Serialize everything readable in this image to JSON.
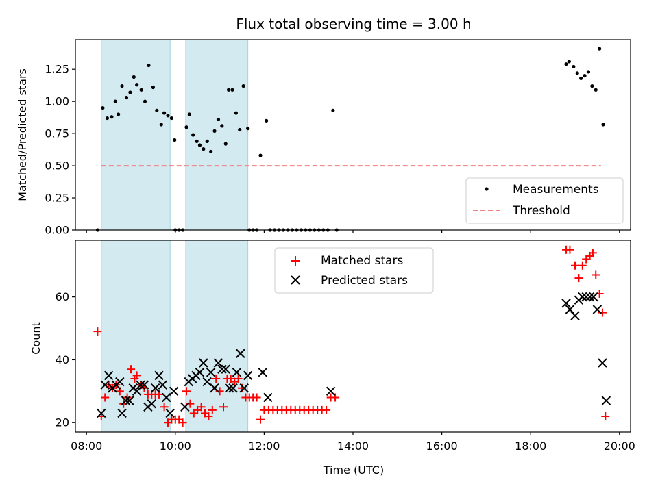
{
  "chart_data": [
    {
      "type": "scatter",
      "title": "Flux total observing time = 3.00 h",
      "ylabel": "Matched/Predicted stars",
      "xlabel": "",
      "xlim": [
        "07:45",
        "20:15"
      ],
      "ylim": [
        0.0,
        1.48
      ],
      "yticks": [
        "0.00",
        "0.25",
        "0.50",
        "0.75",
        "1.00",
        "1.25"
      ],
      "legend": "lower-right",
      "shaded_intervals": [
        [
          "08:20",
          "09:53"
        ],
        [
          "10:14",
          "11:38"
        ]
      ],
      "shade_color": "#d2eaf0",
      "series": [
        {
          "name": "Measurements",
          "marker": "dot",
          "color": "#000000",
          "points": [
            [
              "08:15",
              0.0
            ],
            [
              "08:22",
              0.95
            ],
            [
              "08:28",
              0.87
            ],
            [
              "08:34",
              0.88
            ],
            [
              "08:39",
              1.0
            ],
            [
              "08:43",
              0.9
            ],
            [
              "08:48",
              1.12
            ],
            [
              "08:54",
              1.03
            ],
            [
              "08:59",
              1.07
            ],
            [
              "09:04",
              1.19
            ],
            [
              "09:08",
              1.13
            ],
            [
              "09:14",
              1.09
            ],
            [
              "09:19",
              1.0
            ],
            [
              "09:24",
              1.28
            ],
            [
              "09:30",
              1.11
            ],
            [
              "09:35",
              0.93
            ],
            [
              "09:41",
              0.82
            ],
            [
              "09:45",
              0.91
            ],
            [
              "09:50",
              0.89
            ],
            [
              "09:55",
              0.87
            ],
            [
              "09:59",
              0.7
            ],
            [
              "10:00",
              0.0
            ],
            [
              "10:05",
              0.0
            ],
            [
              "10:10",
              0.0
            ],
            [
              "10:15",
              0.8
            ],
            [
              "10:19",
              0.9
            ],
            [
              "10:24",
              0.74
            ],
            [
              "10:29",
              0.69
            ],
            [
              "10:33",
              0.66
            ],
            [
              "10:38",
              0.63
            ],
            [
              "10:43",
              0.69
            ],
            [
              "10:48",
              0.61
            ],
            [
              "10:53",
              0.77
            ],
            [
              "10:58",
              0.86
            ],
            [
              "11:03",
              0.81
            ],
            [
              "11:08",
              0.67
            ],
            [
              "11:12",
              1.09
            ],
            [
              "11:17",
              1.09
            ],
            [
              "11:22",
              0.91
            ],
            [
              "11:27",
              0.78
            ],
            [
              "11:32",
              1.12
            ],
            [
              "11:38",
              0.79
            ],
            [
              "11:40",
              0.0
            ],
            [
              "11:45",
              0.0
            ],
            [
              "11:50",
              0.0
            ],
            [
              "11:55",
              0.58
            ],
            [
              "12:03",
              0.85
            ],
            [
              "12:08",
              0.0
            ],
            [
              "12:14",
              0.0
            ],
            [
              "12:20",
              0.0
            ],
            [
              "12:26",
              0.0
            ],
            [
              "12:32",
              0.0
            ],
            [
              "12:38",
              0.0
            ],
            [
              "12:44",
              0.0
            ],
            [
              "12:50",
              0.0
            ],
            [
              "12:56",
              0.0
            ],
            [
              "13:02",
              0.0
            ],
            [
              "13:08",
              0.0
            ],
            [
              "13:14",
              0.0
            ],
            [
              "13:20",
              0.0
            ],
            [
              "13:26",
              0.0
            ],
            [
              "13:33",
              0.93
            ],
            [
              "13:38",
              0.0
            ],
            [
              "18:48",
              1.29
            ],
            [
              "18:52",
              1.31
            ],
            [
              "18:58",
              1.27
            ],
            [
              "19:03",
              1.22
            ],
            [
              "19:08",
              1.18
            ],
            [
              "19:13",
              1.2
            ],
            [
              "19:18",
              1.23
            ],
            [
              "19:23",
              1.12
            ],
            [
              "19:28",
              1.09
            ],
            [
              "19:33",
              1.41
            ],
            [
              "19:38",
              0.82
            ]
          ]
        },
        {
          "name": "Threshold",
          "marker": "dashed-line",
          "color": "#f08080",
          "points": [
            [
              "08:20",
              0.5
            ],
            [
              "19:35",
              0.5
            ]
          ]
        }
      ]
    },
    {
      "type": "scatter",
      "title": "",
      "ylabel": "Count",
      "xlabel": "Time (UTC)",
      "xlim": [
        "07:45",
        "20:15"
      ],
      "ylim": [
        17,
        78
      ],
      "yticks": [
        "20",
        "40",
        "60"
      ],
      "xticks": [
        "08:00",
        "10:00",
        "12:00",
        "14:00",
        "16:00",
        "18:00",
        "20:00"
      ],
      "legend": "top-center",
      "shaded_intervals": [
        [
          "08:20",
          "09:53"
        ],
        [
          "10:14",
          "11:38"
        ]
      ],
      "shade_color": "#d2eaf0",
      "series": [
        {
          "name": "Matched stars",
          "marker": "plus",
          "color": "#ff0000",
          "points": [
            [
              "08:15",
              49
            ],
            [
              "08:20",
              22
            ],
            [
              "08:25",
              28
            ],
            [
              "08:30",
              32
            ],
            [
              "08:35",
              31
            ],
            [
              "08:40",
              32
            ],
            [
              "08:45",
              30
            ],
            [
              "08:50",
              26
            ],
            [
              "08:55",
              28
            ],
            [
              "09:00",
              37
            ],
            [
              "09:05",
              34
            ],
            [
              "09:08",
              35
            ],
            [
              "09:13",
              32
            ],
            [
              "09:18",
              31
            ],
            [
              "09:23",
              29
            ],
            [
              "09:28",
              29
            ],
            [
              "09:33",
              29
            ],
            [
              "09:38",
              29
            ],
            [
              "09:45",
              25
            ],
            [
              "09:50",
              20
            ],
            [
              "09:55",
              21
            ],
            [
              "10:00",
              21
            ],
            [
              "10:05",
              21
            ],
            [
              "10:10",
              20
            ],
            [
              "10:15",
              30
            ],
            [
              "10:20",
              26
            ],
            [
              "10:25",
              23
            ],
            [
              "10:30",
              24
            ],
            [
              "10:35",
              25
            ],
            [
              "10:40",
              23
            ],
            [
              "10:45",
              22
            ],
            [
              "10:50",
              24
            ],
            [
              "10:55",
              34
            ],
            [
              "11:00",
              30
            ],
            [
              "11:05",
              25
            ],
            [
              "11:10",
              34
            ],
            [
              "11:15",
              34
            ],
            [
              "11:20",
              33
            ],
            [
              "11:25",
              34
            ],
            [
              "11:30",
              31
            ],
            [
              "11:35",
              28
            ],
            [
              "11:40",
              28
            ],
            [
              "11:45",
              28
            ],
            [
              "11:50",
              28
            ],
            [
              "11:55",
              21
            ],
            [
              "12:00",
              24
            ],
            [
              "12:06",
              24
            ],
            [
              "12:12",
              24
            ],
            [
              "12:18",
              24
            ],
            [
              "12:24",
              24
            ],
            [
              "12:30",
              24
            ],
            [
              "12:36",
              24
            ],
            [
              "12:42",
              24
            ],
            [
              "12:48",
              24
            ],
            [
              "12:54",
              24
            ],
            [
              "13:00",
              24
            ],
            [
              "13:06",
              24
            ],
            [
              "13:12",
              24
            ],
            [
              "13:18",
              24
            ],
            [
              "13:24",
              24
            ],
            [
              "13:30",
              28
            ],
            [
              "13:36",
              28
            ],
            [
              "18:48",
              75
            ],
            [
              "18:53",
              75
            ],
            [
              "19:00",
              70
            ],
            [
              "19:05",
              66
            ],
            [
              "19:10",
              70
            ],
            [
              "19:15",
              72
            ],
            [
              "19:20",
              73
            ],
            [
              "19:24",
              74
            ],
            [
              "19:28",
              67
            ],
            [
              "19:33",
              61
            ],
            [
              "19:37",
              55
            ],
            [
              "19:41",
              22
            ]
          ]
        },
        {
          "name": "Predicted stars",
          "marker": "x",
          "color": "#000000",
          "points": [
            [
              "08:20",
              23
            ],
            [
              "08:25",
              32
            ],
            [
              "08:30",
              35
            ],
            [
              "08:35",
              31
            ],
            [
              "08:40",
              32
            ],
            [
              "08:45",
              33
            ],
            [
              "08:48",
              23
            ],
            [
              "08:53",
              27
            ],
            [
              "08:58",
              27
            ],
            [
              "09:03",
              31
            ],
            [
              "09:08",
              30
            ],
            [
              "09:13",
              32
            ],
            [
              "09:18",
              32
            ],
            [
              "09:23",
              25
            ],
            [
              "09:28",
              26
            ],
            [
              "09:33",
              31
            ],
            [
              "09:38",
              35
            ],
            [
              "09:43",
              32
            ],
            [
              "09:48",
              28
            ],
            [
              "09:53",
              23
            ],
            [
              "09:58",
              30
            ],
            [
              "10:13",
              25
            ],
            [
              "10:18",
              33
            ],
            [
              "10:23",
              34
            ],
            [
              "10:28",
              35
            ],
            [
              "10:33",
              36
            ],
            [
              "10:38",
              39
            ],
            [
              "10:43",
              33
            ],
            [
              "10:48",
              36
            ],
            [
              "10:53",
              31
            ],
            [
              "10:58",
              39
            ],
            [
              "11:03",
              37
            ],
            [
              "11:08",
              37
            ],
            [
              "11:13",
              31
            ],
            [
              "11:18",
              31
            ],
            [
              "11:23",
              36
            ],
            [
              "11:28",
              42
            ],
            [
              "11:33",
              31
            ],
            [
              "11:38",
              35
            ],
            [
              "11:58",
              36
            ],
            [
              "12:05",
              28
            ],
            [
              "13:30",
              30
            ],
            [
              "18:48",
              58
            ],
            [
              "18:53",
              56
            ],
            [
              "19:00",
              54
            ],
            [
              "19:05",
              59
            ],
            [
              "19:10",
              60
            ],
            [
              "19:15",
              60
            ],
            [
              "19:20",
              60
            ],
            [
              "19:25",
              60
            ],
            [
              "19:30",
              56
            ],
            [
              "19:37",
              39
            ],
            [
              "19:42",
              27
            ]
          ]
        }
      ]
    }
  ]
}
